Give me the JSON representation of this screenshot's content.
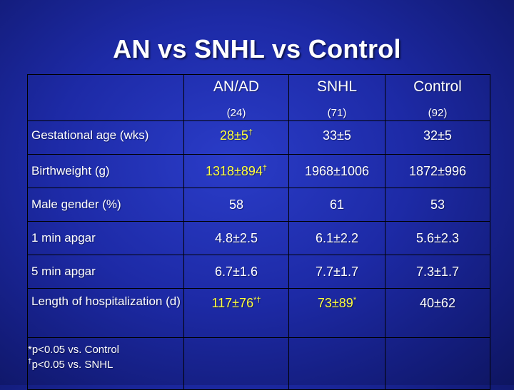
{
  "slide": {
    "title": "AN vs SNHL vs Control"
  },
  "table": {
    "columns": [
      {
        "name": "AN/AD",
        "n": "(24)"
      },
      {
        "name": "SNHL",
        "n": "(71)"
      },
      {
        "name": "Control",
        "n": "(92)"
      }
    ],
    "rows": [
      {
        "label": "Gestational age (wks)",
        "values": [
          "28±5",
          "33±5",
          "32±5"
        ],
        "marks": [
          "†",
          "",
          ""
        ]
      },
      {
        "label": "Birthweight (g)",
        "values": [
          "1318±894",
          "1968±1006",
          "1872±996"
        ],
        "marks": [
          "†",
          "",
          ""
        ]
      },
      {
        "label": "Male gender (%)",
        "values": [
          "58",
          "61",
          "53"
        ],
        "marks": [
          "",
          "",
          ""
        ]
      },
      {
        "label": "1 min apgar",
        "values": [
          "4.8±2.5",
          "6.1±2.2",
          "5.6±2.3"
        ],
        "marks": [
          "",
          "",
          ""
        ]
      },
      {
        "label": "5 min apgar",
        "values": [
          "6.7±1.6",
          "7.7±1.7",
          "7.3±1.7"
        ],
        "marks": [
          "",
          "",
          ""
        ]
      },
      {
        "label": "Length of hospitalization (d)",
        "values": [
          "117±76",
          "73±89",
          "40±62"
        ],
        "marks": [
          "*†",
          "*",
          ""
        ]
      }
    ],
    "footnotes": {
      "line1": "*p<0.05 vs. Control",
      "line2_mark": "†",
      "line2": "p<0.05 vs. SNHL"
    }
  },
  "colors": {
    "background": "#1d2aa6",
    "text": "#ffffff",
    "highlight": "#ffff3c",
    "grid": "#000000"
  }
}
